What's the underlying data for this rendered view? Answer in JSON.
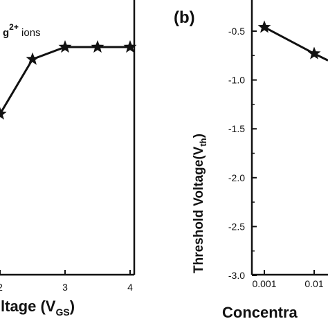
{
  "chart_data": [
    {
      "type": "line",
      "panel_label": "",
      "annotation": {
        "prefix": "g",
        "superscript": "2+",
        "suffix": " ions"
      },
      "xlabel": {
        "main": "ltage (V",
        "sub": "GS",
        "end": ")"
      },
      "ylabel": "",
      "x_ticks": [
        "2",
        "3",
        "4"
      ],
      "xlim": [
        2.0,
        4.12
      ],
      "ylim": [
        -1.0,
        0.3
      ],
      "series": [
        {
          "marker": "star",
          "color": "#111111",
          "x": [
            2.0,
            2.5,
            3.0,
            3.5,
            4.0
          ],
          "y": [
            -0.55,
            -0.1,
            0.0,
            0.0,
            0.0
          ]
        }
      ]
    },
    {
      "type": "line",
      "panel_label": "(b)",
      "ylabel": {
        "main": "Threshold Voltage(V",
        "sub": "th",
        "end": ")"
      },
      "xlabel": "Concentra",
      "y_ticks": [
        "-0.5",
        "-1.0",
        "-1.5",
        "-2.0",
        "-2.5",
        "-3.0"
      ],
      "x_ticks": [
        "0.001",
        "0.01"
      ],
      "ylim": [
        -3.0,
        -0.25
      ],
      "y_log_scale": false,
      "x_log_scale": true,
      "series": [
        {
          "marker": "star",
          "color": "#111111",
          "x": [
            0.001,
            0.01
          ],
          "y": [
            -0.46,
            -0.73
          ],
          "y_next": -0.8
        }
      ]
    }
  ]
}
